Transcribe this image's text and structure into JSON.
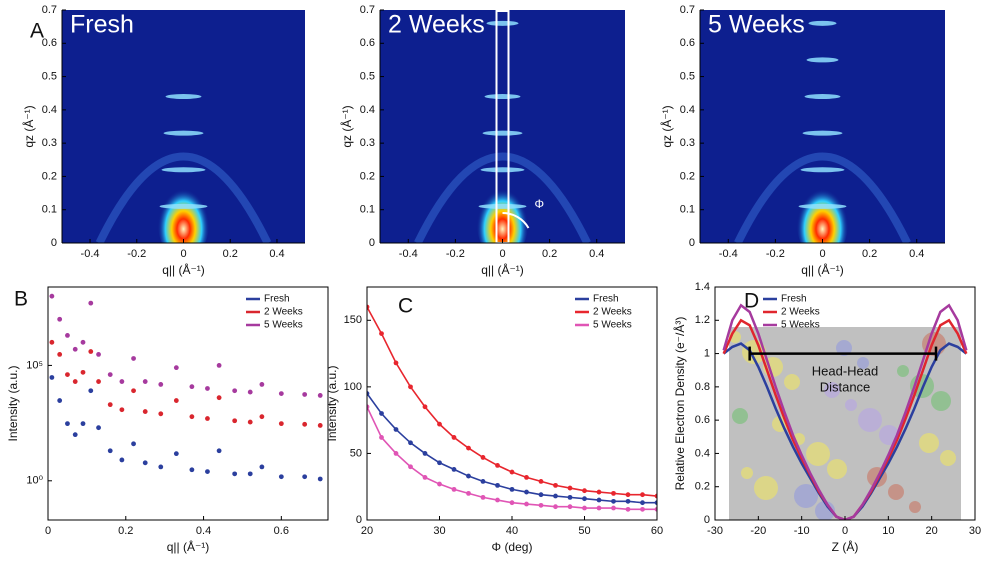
{
  "chart_data": [
    {
      "type": "image",
      "panel_label": "A",
      "title": "Fresh",
      "xlabel": "q|| (Å⁻¹)",
      "ylabel": "qz (Å⁻¹)",
      "xlim": [
        -0.52,
        0.52
      ],
      "ylim": [
        0,
        0.7
      ],
      "xticks": [
        -0.4,
        -0.2,
        0,
        0.2,
        0.4
      ],
      "yticks": [
        0,
        0.1,
        0.2,
        0.3,
        0.4,
        0.5,
        0.6,
        0.7
      ],
      "peaks": {
        "x": [
          0,
          0,
          0,
          0
        ],
        "y": [
          0.11,
          0.22,
          0.33,
          0.44
        ]
      }
    },
    {
      "type": "image",
      "title": "2 Weeks",
      "xlabel": "q|| (Å⁻¹)",
      "ylabel": "qz (Å⁻¹)",
      "annotation": "Φ",
      "xlim": [
        -0.52,
        0.52
      ],
      "ylim": [
        0,
        0.7
      ],
      "xticks": [
        -0.4,
        -0.2,
        0,
        0.2,
        0.4
      ],
      "yticks": [
        0,
        0.1,
        0.2,
        0.3,
        0.4,
        0.5,
        0.6,
        0.7
      ],
      "peaks": {
        "x": [
          0,
          0,
          0,
          0,
          0
        ],
        "y": [
          0.11,
          0.22,
          0.33,
          0.44,
          0.66
        ]
      }
    },
    {
      "type": "image",
      "title": "5 Weeks",
      "xlabel": "q|| (Å⁻¹)",
      "ylabel": "qz (Å⁻¹)",
      "xlim": [
        -0.52,
        0.52
      ],
      "ylim": [
        0,
        0.7
      ],
      "xticks": [
        -0.4,
        -0.2,
        0,
        0.2,
        0.4
      ],
      "yticks": [
        0,
        0.1,
        0.2,
        0.3,
        0.4,
        0.5,
        0.6,
        0.7
      ],
      "peaks": {
        "x": [
          0,
          0,
          0,
          0,
          0,
          0
        ],
        "y": [
          0.11,
          0.22,
          0.33,
          0.44,
          0.55,
          0.66
        ]
      }
    },
    {
      "type": "scatter",
      "panel_label": "B",
      "log_y": true,
      "xlabel": "q|| (Å⁻¹)",
      "ylabel": "Intensity (a.u.)",
      "xlim": [
        0,
        0.72
      ],
      "ylim": [
        0.02,
        250000000
      ],
      "xticks": [
        0,
        0.2,
        0.4,
        0.6
      ],
      "yticks": [
        {
          "value": 1,
          "label": "10⁰"
        },
        {
          "value": 100000,
          "label": "10⁵"
        }
      ],
      "legend": "upper right",
      "x": [
        0.01,
        0.03,
        0.05,
        0.07,
        0.09,
        0.11,
        0.13,
        0.16,
        0.19,
        0.22,
        0.25,
        0.29,
        0.33,
        0.37,
        0.41,
        0.44,
        0.48,
        0.52,
        0.55,
        0.6,
        0.66,
        0.7
      ],
      "series": [
        {
          "name": "Fresh",
          "color": "#2b3f9e",
          "values": [
            30000,
            3000,
            300,
            100,
            300,
            8000,
            200,
            20,
            8,
            40,
            6,
            4,
            15,
            3,
            2.5,
            20,
            2,
            2,
            4,
            1.5,
            1.5,
            1.2
          ]
        },
        {
          "name": "2 Weeks",
          "color": "#d9262e",
          "values": [
            1000000,
            300000,
            40000,
            20000,
            50000,
            400000,
            20000,
            2000,
            1200,
            8000,
            1000,
            800,
            3000,
            600,
            500,
            4000,
            400,
            350,
            600,
            300,
            280,
            250
          ]
        },
        {
          "name": "5 Weeks",
          "color": "#a63a9e",
          "values": [
            100000000,
            10000000,
            2000000,
            500000,
            1000000,
            50000000,
            300000,
            40000,
            20000,
            200000,
            20000,
            15000,
            80000,
            12000,
            10000,
            100000,
            8000,
            7000,
            15000,
            6000,
            5500,
            5000
          ]
        }
      ]
    },
    {
      "type": "scatter",
      "panel_label": "C",
      "fit_line": true,
      "xlabel": "Φ (deg)",
      "ylabel": "Intensity (a.u.)",
      "xlim": [
        20,
        60
      ],
      "ylim": [
        0,
        175
      ],
      "xticks": [
        20,
        30,
        40,
        50,
        60
      ],
      "yticks": [
        0,
        50,
        100,
        150
      ],
      "legend": "upper right",
      "x": [
        20,
        22,
        24,
        26,
        28,
        30,
        32,
        34,
        36,
        38,
        40,
        42,
        44,
        46,
        48,
        50,
        52,
        54,
        56,
        58,
        60
      ],
      "series": [
        {
          "name": "Fresh",
          "color": "#2b3f9e",
          "values": [
            95,
            80,
            68,
            58,
            50,
            43,
            38,
            33,
            29,
            26,
            23,
            21,
            19,
            18,
            17,
            16,
            15,
            14,
            14,
            13,
            13
          ]
        },
        {
          "name": "2 Weeks",
          "color": "#e8262e",
          "values": [
            160,
            140,
            118,
            100,
            85,
            72,
            62,
            54,
            47,
            41,
            36,
            32,
            29,
            26,
            24,
            22,
            21,
            20,
            19,
            19,
            18
          ]
        },
        {
          "name": "5 Weeks",
          "color": "#e055b5",
          "values": [
            85,
            62,
            50,
            40,
            32,
            27,
            23,
            20,
            17,
            15,
            13,
            12,
            11,
            10,
            10,
            9,
            9,
            9,
            8,
            8,
            8
          ]
        }
      ]
    },
    {
      "type": "line",
      "panel_label": "D",
      "xlabel": "Z (Å)",
      "ylabel": "Relative Electron Density (e⁻/Å³)",
      "xlim": [
        -30,
        30
      ],
      "ylim": [
        0,
        1.4
      ],
      "xticks": [
        -30,
        -20,
        -10,
        0,
        10,
        20,
        30
      ],
      "yticks": [
        0,
        0.2,
        0.4,
        0.6,
        0.8,
        1,
        1.2,
        1.4
      ],
      "legend": "upper left",
      "annotations": [
        "Head-Head",
        "Distance"
      ],
      "bracket": {
        "x": [
          -22,
          21
        ],
        "y": 1
      },
      "x": [
        -28,
        -26,
        -24,
        -22,
        -20,
        -18,
        -16,
        -14,
        -12,
        -10,
        -8,
        -6,
        -4,
        -2,
        0,
        2,
        4,
        6,
        8,
        10,
        12,
        14,
        16,
        18,
        20,
        22,
        24,
        26,
        28
      ],
      "series": [
        {
          "name": "Fresh",
          "color": "#2b3f9e",
          "values": [
            1.0,
            1.04,
            1.06,
            1.02,
            0.92,
            0.8,
            0.67,
            0.55,
            0.44,
            0.34,
            0.25,
            0.16,
            0.08,
            0.02,
            0,
            0.02,
            0.08,
            0.16,
            0.25,
            0.34,
            0.44,
            0.55,
            0.67,
            0.8,
            0.92,
            1.02,
            1.06,
            1.04,
            1.0
          ]
        },
        {
          "name": "2 Weeks",
          "color": "#e0262e",
          "values": [
            1.0,
            1.12,
            1.2,
            1.17,
            1.05,
            0.9,
            0.75,
            0.61,
            0.48,
            0.37,
            0.27,
            0.17,
            0.09,
            0.02,
            0,
            0.02,
            0.09,
            0.17,
            0.27,
            0.37,
            0.48,
            0.61,
            0.75,
            0.9,
            1.05,
            1.17,
            1.2,
            1.12,
            1.0
          ]
        },
        {
          "name": "5 Weeks",
          "color": "#a63a9e",
          "values": [
            1.02,
            1.2,
            1.29,
            1.25,
            1.12,
            0.96,
            0.8,
            0.65,
            0.51,
            0.39,
            0.28,
            0.18,
            0.09,
            0.02,
            0,
            0.02,
            0.09,
            0.18,
            0.28,
            0.39,
            0.51,
            0.65,
            0.8,
            0.96,
            1.12,
            1.25,
            1.29,
            1.2,
            1.02
          ]
        }
      ]
    }
  ]
}
